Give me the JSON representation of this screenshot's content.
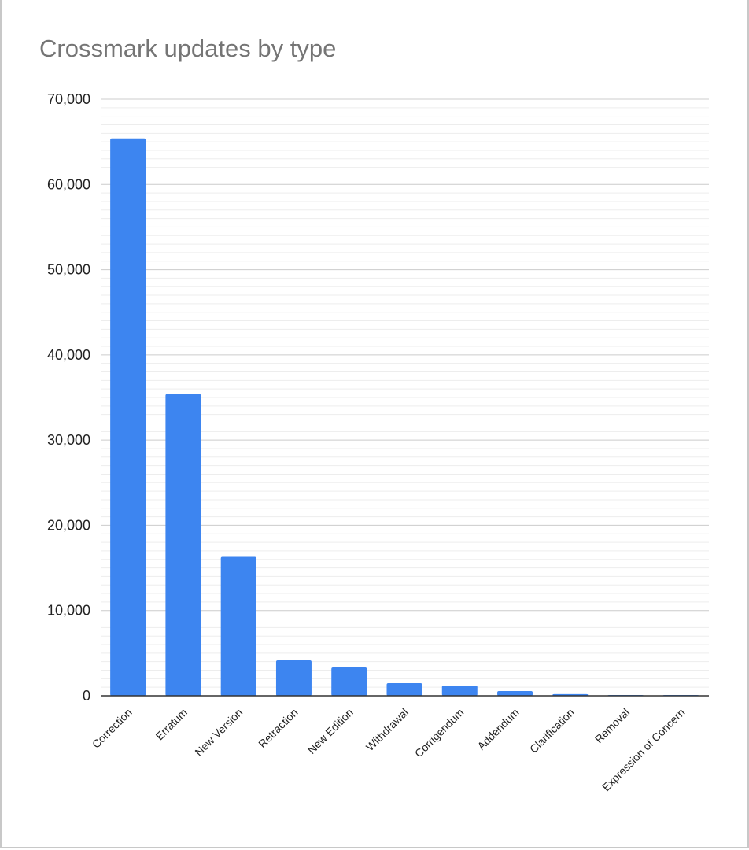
{
  "chart_data": {
    "type": "bar",
    "title": "Crossmark updates by type",
    "xlabel": "",
    "ylabel": "",
    "ylim": [
      0,
      70000
    ],
    "yticks": [
      0,
      10000,
      20000,
      30000,
      40000,
      50000,
      60000,
      70000
    ],
    "ytick_labels": [
      "0",
      "10,000",
      "20,000",
      "30,000",
      "40,000",
      "50,000",
      "60,000",
      "70,000"
    ],
    "grid": true,
    "legend": "none",
    "categories": [
      "Correction",
      "Erratum",
      "New Version",
      "Retraction",
      "New Edition",
      "Withdrawal",
      "Corrigendum",
      "Addendum",
      "Clarification",
      "Removal",
      "Expression of Concern"
    ],
    "values": [
      65400,
      35400,
      16300,
      4150,
      3320,
      1480,
      1200,
      550,
      200,
      80,
      80
    ],
    "bar_color": "#3d85f0"
  }
}
